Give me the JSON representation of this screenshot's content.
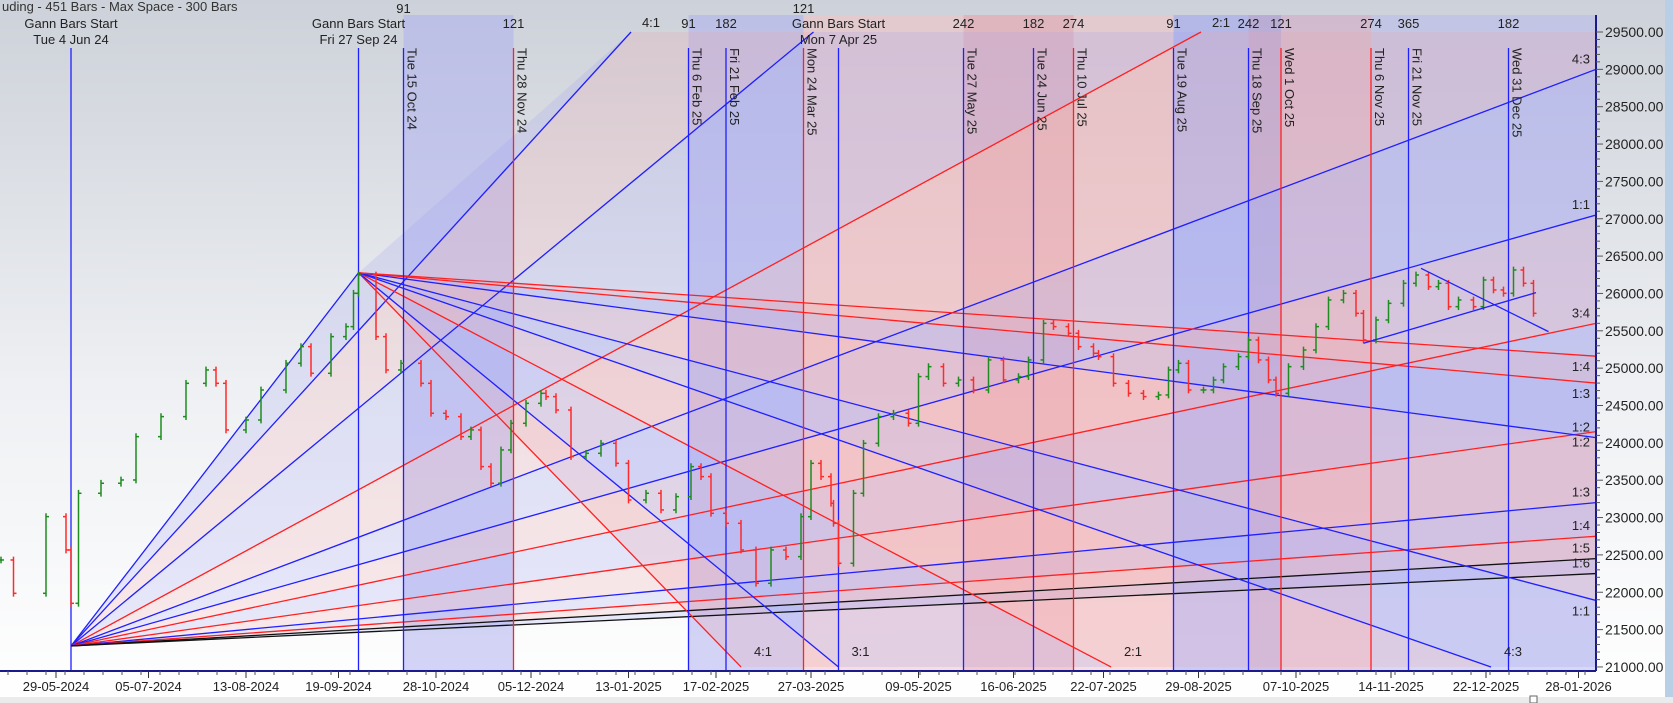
{
  "header": {
    "status_text": "uding - 451 Bars - Max Space - 300 Bars"
  },
  "chart_data": {
    "type": "ohlc",
    "title": "",
    "ylim": [
      21000,
      29500
    ],
    "y_ticks": [
      {
        "value": 21000,
        "label": "21000.00"
      },
      {
        "value": 21500,
        "label": "21500.00"
      },
      {
        "value": 22000,
        "label": "22000.00"
      },
      {
        "value": 22500,
        "label": "22500.00"
      },
      {
        "value": 23000,
        "label": "23000.00"
      },
      {
        "value": 23500,
        "label": "23500.00"
      },
      {
        "value": 24000,
        "label": "24000.00"
      },
      {
        "value": 24500,
        "label": "24500.00"
      },
      {
        "value": 25000,
        "label": "25000.00"
      },
      {
        "value": 25500,
        "label": "25500.00"
      },
      {
        "value": 26000,
        "label": "26000.00"
      },
      {
        "value": 26500,
        "label": "26500.00"
      },
      {
        "value": 27000,
        "label": "27000.00"
      },
      {
        "value": 27500,
        "label": "27500.00"
      },
      {
        "value": 28000,
        "label": "28000.00"
      },
      {
        "value": 28500,
        "label": "28500.00"
      },
      {
        "value": 29000,
        "label": "29000.00"
      },
      {
        "value": 29500,
        "label": "29500.00"
      }
    ],
    "x_ticks": [
      {
        "date": "2024-05-29",
        "label": "29-05-2024"
      },
      {
        "date": "2024-07-05",
        "label": "05-07-2024"
      },
      {
        "date": "2024-08-13",
        "label": "13-08-2024"
      },
      {
        "date": "2024-09-19",
        "label": "19-09-2024"
      },
      {
        "date": "2024-10-28",
        "label": "28-10-2024"
      },
      {
        "date": "2024-12-05",
        "label": "05-12-2024"
      },
      {
        "date": "2025-01-13",
        "label": "13-01-2025"
      },
      {
        "date": "2025-02-17",
        "label": "17-02-2025"
      },
      {
        "date": "2025-03-27",
        "label": "27-03-2025"
      },
      {
        "date": "2025-05-09",
        "label": "09-05-2025"
      },
      {
        "date": "2025-06-16",
        "label": "16-06-2025"
      },
      {
        "date": "2025-07-22",
        "label": "22-07-2025"
      },
      {
        "date": "2025-08-29",
        "label": "29-08-2025"
      },
      {
        "date": "2025-10-07",
        "label": "07-10-2025"
      },
      {
        "date": "2025-11-14",
        "label": "14-11-2025"
      },
      {
        "date": "2025-12-22",
        "label": "22-12-2025"
      },
      {
        "date": "2026-01-28",
        "label": "28-01-2026"
      }
    ],
    "price_series": [
      [
        "2024-05-07",
        22432
      ],
      [
        "2024-05-12",
        21986
      ],
      [
        "2024-05-25",
        23012
      ],
      [
        "2024-06-02",
        22566
      ],
      [
        "2024-06-04",
        21852
      ],
      [
        "2024-06-07",
        23325
      ],
      [
        "2024-06-16",
        23459
      ],
      [
        "2024-06-24",
        23503
      ],
      [
        "2024-06-30",
        24083
      ],
      [
        "2024-07-10",
        24351
      ],
      [
        "2024-07-20",
        24797
      ],
      [
        "2024-07-28",
        24976
      ],
      [
        "2024-08-01",
        24797
      ],
      [
        "2024-08-05",
        24173
      ],
      [
        "2024-08-13",
        24306
      ],
      [
        "2024-08-19",
        24708
      ],
      [
        "2024-08-29",
        25065
      ],
      [
        "2024-09-04",
        25288
      ],
      [
        "2024-09-08",
        24931
      ],
      [
        "2024-09-16",
        25422
      ],
      [
        "2024-09-22",
        25556
      ],
      [
        "2024-09-25",
        26002
      ],
      [
        "2024-09-27",
        26247
      ],
      [
        "2024-10-04",
        25422
      ],
      [
        "2024-10-08",
        24976
      ],
      [
        "2024-10-14",
        25065
      ],
      [
        "2024-10-22",
        24797
      ],
      [
        "2024-10-26",
        24396
      ],
      [
        "2024-11-01",
        24351
      ],
      [
        "2024-11-07",
        24083
      ],
      [
        "2024-11-11",
        24173
      ],
      [
        "2024-11-15",
        23682
      ],
      [
        "2024-11-19",
        23459
      ],
      [
        "2024-11-23",
        23905
      ],
      [
        "2024-11-27",
        24262
      ],
      [
        "2024-12-03",
        24529
      ],
      [
        "2024-12-09",
        24663
      ],
      [
        "2024-12-11",
        24619
      ],
      [
        "2024-12-15",
        24440
      ],
      [
        "2024-12-21",
        23816
      ],
      [
        "2024-12-27",
        23860
      ],
      [
        "2025-01-02",
        23994
      ],
      [
        "2025-01-08",
        23726
      ],
      [
        "2025-01-13",
        23235
      ],
      [
        "2025-01-20",
        23325
      ],
      [
        "2025-01-26",
        23102
      ],
      [
        "2025-02-01",
        23280
      ],
      [
        "2025-02-07",
        23682
      ],
      [
        "2025-02-11",
        23548
      ],
      [
        "2025-02-15",
        23057
      ],
      [
        "2025-02-21",
        22923
      ],
      [
        "2025-02-27",
        22566
      ],
      [
        "2025-03-05",
        22120
      ],
      [
        "2025-03-11",
        22566
      ],
      [
        "2025-03-17",
        22477
      ],
      [
        "2025-03-23",
        23012
      ],
      [
        "2025-03-27",
        23726
      ],
      [
        "2025-03-31",
        23548
      ],
      [
        "2025-04-04",
        23191
      ],
      [
        "2025-04-05",
        22923
      ],
      [
        "2025-04-07",
        22388
      ],
      [
        "2025-04-13",
        23325
      ],
      [
        "2025-04-17",
        23994
      ],
      [
        "2025-04-23",
        24351
      ],
      [
        "2025-04-29",
        24396
      ],
      [
        "2025-05-05",
        24262
      ],
      [
        "2025-05-09",
        24887
      ],
      [
        "2025-05-13",
        25020
      ],
      [
        "2025-05-19",
        24797
      ],
      [
        "2025-05-25",
        24842
      ],
      [
        "2025-05-31",
        24708
      ],
      [
        "2025-06-06",
        25110
      ],
      [
        "2025-06-12",
        24842
      ],
      [
        "2025-06-18",
        24887
      ],
      [
        "2025-06-22",
        25110
      ],
      [
        "2025-06-28",
        25600
      ],
      [
        "2025-07-02",
        25556
      ],
      [
        "2025-07-08",
        25467
      ],
      [
        "2025-07-12",
        25288
      ],
      [
        "2025-07-18",
        25199
      ],
      [
        "2025-07-20",
        25154
      ],
      [
        "2025-07-26",
        24797
      ],
      [
        "2025-08-01",
        24663
      ],
      [
        "2025-08-07",
        24619
      ],
      [
        "2025-08-13",
        24641
      ],
      [
        "2025-08-17",
        24976
      ],
      [
        "2025-08-21",
        25065
      ],
      [
        "2025-08-25",
        24708
      ],
      [
        "2025-08-31",
        24708
      ],
      [
        "2025-09-04",
        24842
      ],
      [
        "2025-09-08",
        25020
      ],
      [
        "2025-09-14",
        25154
      ],
      [
        "2025-09-18",
        25377
      ],
      [
        "2025-09-22",
        25110
      ],
      [
        "2025-09-26",
        24842
      ],
      [
        "2025-09-29",
        24663
      ],
      [
        "2025-10-04",
        25020
      ],
      [
        "2025-10-10",
        25243
      ],
      [
        "2025-10-15",
        25556
      ],
      [
        "2025-10-20",
        25913
      ],
      [
        "2025-10-26",
        26002
      ],
      [
        "2025-10-31",
        25734
      ],
      [
        "2025-11-03",
        25377
      ],
      [
        "2025-11-08",
        25645
      ],
      [
        "2025-11-13",
        25868
      ],
      [
        "2025-11-19",
        26136
      ],
      [
        "2025-11-24",
        26247
      ],
      [
        "2025-11-29",
        26091
      ],
      [
        "2025-12-03",
        26136
      ],
      [
        "2025-12-07",
        25823
      ],
      [
        "2025-12-11",
        25913
      ],
      [
        "2025-12-17",
        25823
      ],
      [
        "2025-12-21",
        26180
      ],
      [
        "2025-12-25",
        26047
      ],
      [
        "2025-12-29",
        26002
      ],
      [
        "2026-01-02",
        26314
      ],
      [
        "2026-01-06",
        26136
      ],
      [
        "2026-01-10",
        25734
      ]
    ],
    "gann_starts": [
      {
        "title": "Gann Bars Start",
        "date_label": "Tue 4 Jun 24",
        "date": "2024-06-04"
      },
      {
        "title": "Gann Bars Start",
        "date_label": "Fri 27 Sep 24",
        "date": "2024-09-27"
      },
      {
        "title": "Gann Bars Start",
        "date_label": "Mon 7 Apr 25",
        "date": "2025-04-07"
      }
    ],
    "cycle_lines": [
      {
        "label": "Tue 15 Oct 24",
        "date": "2024-10-15",
        "count": "91",
        "color": "#1f1fff"
      },
      {
        "label": "Thu 28 Nov 24",
        "date": "2024-11-28",
        "count": "121",
        "color": "#ff2020"
      },
      {
        "label": "Thu 6 Feb 25",
        "date": "2025-02-06",
        "count": "91",
        "color": "#1f1fff"
      },
      {
        "label": "Fri 21 Feb 25",
        "date": "2025-02-21",
        "count": "182",
        "color": "#1f1fff"
      },
      {
        "label": "Mon 24 Mar 25",
        "date": "2025-03-24",
        "count": "121",
        "color": "#ff2020"
      },
      {
        "label": "Tue 27 May 25",
        "date": "2025-05-27",
        "count": "242",
        "color": "#1f1fff"
      },
      {
        "label": "Tue 24 Jun 25",
        "date": "2025-06-24",
        "count": "182",
        "color": "#1f1fff"
      },
      {
        "label": "Thu 10 Jul 25",
        "date": "2025-07-10",
        "count": "274",
        "color": "#ff2020"
      },
      {
        "label": "Tue 19 Aug 25",
        "date": "2025-08-19",
        "count": "91",
        "color": "#1f1fff"
      },
      {
        "label": "Thu 18 Sep 25",
        "date": "2025-09-18",
        "count": "242",
        "color": "#1f1fff"
      },
      {
        "label": "Wed 1 Oct 25",
        "date": "2025-10-01",
        "count": "121",
        "color": "#ff2020"
      },
      {
        "label": "Thu 6 Nov 25",
        "date": "2025-11-06",
        "count": "274",
        "color": "#ff2020"
      },
      {
        "label": "Fri 21 Nov 25",
        "date": "2025-11-21",
        "count": "365",
        "color": "#1f1fff"
      },
      {
        "label": "Wed 31 Dec 25",
        "date": "2025-12-31",
        "count": "182",
        "color": "#1f1fff"
      }
    ],
    "regions": [
      {
        "start": "2024-10-15",
        "end": "2024-11-28",
        "color": "#aeb0ee"
      },
      {
        "start": "2025-02-06",
        "end": "2025-03-24",
        "color": "#aeb0ee"
      },
      {
        "start": "2025-03-24",
        "end": "2025-05-27",
        "color": "#f2c2c4"
      },
      {
        "start": "2025-05-27",
        "end": "2025-07-10",
        "color": "#ec9ea6"
      },
      {
        "start": "2025-07-10",
        "end": "2025-08-19",
        "color": "#f2c2c4"
      },
      {
        "start": "2025-08-19",
        "end": "2025-09-18",
        "color": "#9fa2f0"
      },
      {
        "start": "2025-09-18",
        "end": "2025-10-01",
        "color": "#a88ed2"
      },
      {
        "start": "2025-10-01",
        "end": "2025-11-06",
        "color": "#d6a6c4"
      },
      {
        "start": "2025-11-06",
        "end": "2026-02-04",
        "color": "#b8b9ec"
      }
    ],
    "fans": [
      {
        "origin": {
          "date": "2024-06-04",
          "price": 21281
        },
        "lines": [
          {
            "ratio": "",
            "color": "#1f1fff",
            "end": {
              "date": "2024-09-27",
              "price": 26277
            }
          },
          {
            "ratio": "4:1",
            "color": "#1f1fff",
            "end": {
              "date": "2025-01-14",
              "price": 29500
            },
            "label_pos": "top"
          },
          {
            "ratio": "",
            "color": "#1f1fff",
            "end": {
              "date": "2025-03-28",
              "price": 29500
            }
          },
          {
            "ratio": "2:1",
            "color": "#ff2020",
            "end": {
              "date": "2025-08-30",
              "price": 29500
            },
            "label_pos": "top"
          },
          {
            "ratio": "4:3",
            "color": "#1f1fff",
            "end": {
              "date": "2026-02-04",
              "price": 29000
            },
            "label_pos": "above"
          },
          {
            "ratio": "1:1",
            "color": "#1f1fff",
            "end": {
              "date": "2026-02-04",
              "price": 27050
            },
            "label_pos": "above"
          },
          {
            "ratio": "3:4",
            "color": "#ff2020",
            "end": {
              "date": "2026-02-04",
              "price": 25600
            },
            "label_pos": "above"
          },
          {
            "ratio": "1:2",
            "color": "#ff2020",
            "end": {
              "date": "2026-02-04",
              "price": 24150
            },
            "label_pos": "below"
          },
          {
            "ratio": "1:3",
            "color": "#1f1fff",
            "end": {
              "date": "2026-02-04",
              "price": 23200
            },
            "label_pos": "above"
          },
          {
            "ratio": "1:4",
            "color": "#ff2020",
            "end": {
              "date": "2026-02-04",
              "price": 22750
            },
            "label_pos": "above"
          },
          {
            "ratio": "1:5",
            "color": "#111111",
            "end": {
              "date": "2026-02-04",
              "price": 22450
            },
            "label_pos": "above"
          },
          {
            "ratio": "1:6",
            "color": "#111111",
            "end": {
              "date": "2026-02-04",
              "price": 22250
            },
            "label_pos": "above"
          }
        ]
      },
      {
        "origin": {
          "date": "2024-09-27",
          "price": 26277
        },
        "lines": [
          {
            "ratio": "4:1",
            "color": "#ff2020",
            "end": {
              "date": "2025-02-27",
              "price": 21000
            },
            "label_pos": "bottom"
          },
          {
            "ratio": "3:1",
            "color": "#1f1fff",
            "end": {
              "date": "2025-04-07",
              "price": 21000
            },
            "label_pos": "bottom"
          },
          {
            "ratio": "2:1",
            "color": "#ff2020",
            "end": {
              "date": "2025-07-25",
              "price": 21000
            },
            "label_pos": "bottom"
          },
          {
            "ratio": "4:3",
            "color": "#1f1fff",
            "end": {
              "date": "2025-12-24",
              "price": 21000
            },
            "label_pos": "bottom"
          },
          {
            "ratio": "1:1",
            "color": "#1f1fff",
            "end": {
              "date": "2026-02-04",
              "price": 21890
            },
            "label_pos": "below"
          },
          {
            "ratio": "1:2",
            "color": "#1f1fff",
            "end": {
              "date": "2026-02-04",
              "price": 24070
            },
            "label_pos": "above"
          },
          {
            "ratio": "1:3",
            "color": "#ff2020",
            "end": {
              "date": "2026-02-04",
              "price": 24800
            },
            "label_pos": "below"
          },
          {
            "ratio": "1:4",
            "color": "#ff2020",
            "end": {
              "date": "2026-02-04",
              "price": 25160
            },
            "label_pos": "below"
          }
        ]
      }
    ],
    "trendlines": [
      {
        "color": "#1f1fff",
        "start": {
          "date": "2025-11-03",
          "price": 25333
        },
        "end": {
          "date": "2026-01-11",
          "price": 26011
        }
      },
      {
        "color": "#1f1fff",
        "start": {
          "date": "2025-11-26",
          "price": 26337
        },
        "end": {
          "date": "2026-01-16",
          "price": 25489
        }
      }
    ],
    "colors": {
      "up_bar": "#1e8c1e",
      "down_bar": "#ff2a2a",
      "axis": "#1a1a8c"
    },
    "grid": false
  }
}
